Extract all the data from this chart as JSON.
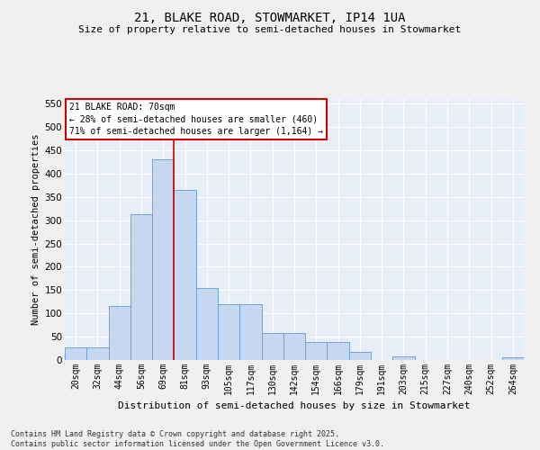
{
  "title1": "21, BLAKE ROAD, STOWMARKET, IP14 1UA",
  "title2": "Size of property relative to semi-detached houses in Stowmarket",
  "xlabel": "Distribution of semi-detached houses by size in Stowmarket",
  "ylabel": "Number of semi-detached properties",
  "categories": [
    "20sqm",
    "32sqm",
    "44sqm",
    "56sqm",
    "69sqm",
    "81sqm",
    "93sqm",
    "105sqm",
    "117sqm",
    "130sqm",
    "142sqm",
    "154sqm",
    "166sqm",
    "179sqm",
    "191sqm",
    "203sqm",
    "215sqm",
    "227sqm",
    "240sqm",
    "252sqm",
    "264sqm"
  ],
  "values": [
    28,
    27,
    115,
    312,
    430,
    365,
    155,
    120,
    120,
    58,
    58,
    38,
    38,
    18,
    0,
    8,
    0,
    0,
    0,
    0,
    5
  ],
  "bar_color": "#c5d8f0",
  "bar_edge_color": "#6699cc",
  "bg_color": "#e8eef8",
  "grid_color": "#ffffff",
  "vline_color": "#cc0000",
  "annotation_text": "21 BLAKE ROAD: 70sqm\n← 28% of semi-detached houses are smaller (460)\n71% of semi-detached houses are larger (1,164) →",
  "annotation_box_color": "#cc0000",
  "ylim": [
    0,
    560
  ],
  "yticks": [
    0,
    50,
    100,
    150,
    200,
    250,
    300,
    350,
    400,
    450,
    500,
    550
  ],
  "footnote": "Contains HM Land Registry data © Crown copyright and database right 2025.\nContains public sector information licensed under the Open Government Licence v3.0."
}
